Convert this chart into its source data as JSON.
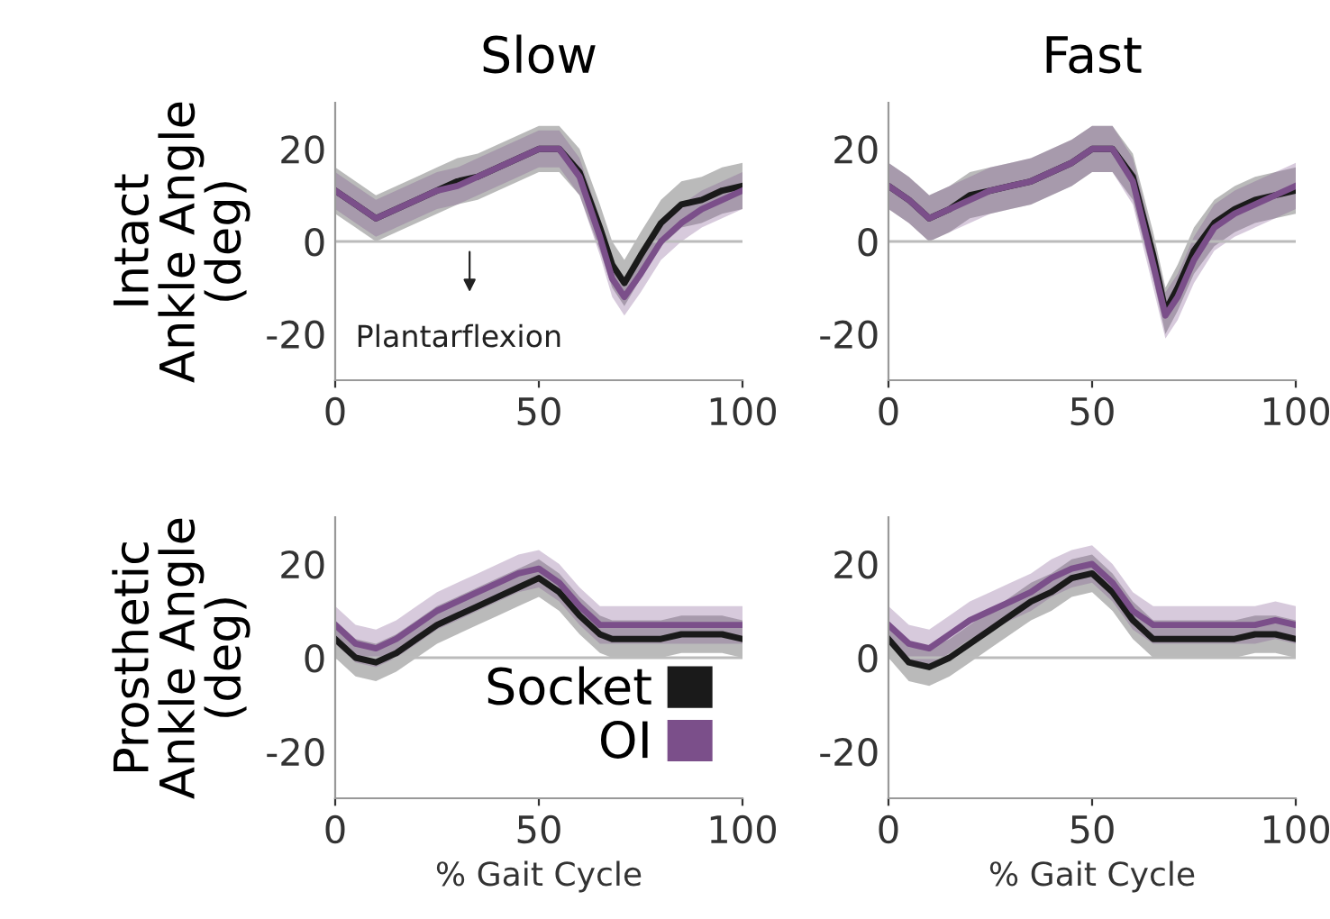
{
  "chart_data": [
    {
      "type": "line",
      "title": "Slow",
      "ylabel": "Intact\nAnkle Angle\n(deg)",
      "x": [
        0,
        5,
        10,
        15,
        20,
        25,
        30,
        35,
        40,
        45,
        50,
        55,
        60,
        65,
        68,
        71,
        75,
        80,
        85,
        90,
        95,
        100
      ],
      "xlim": [
        0,
        100
      ],
      "xticks": [
        0,
        50,
        100
      ],
      "ylim": [
        -30,
        30
      ],
      "yticks": [
        -20,
        0,
        20
      ],
      "ref_lines": [
        {
          "axis": "y",
          "value": 0
        }
      ],
      "legend": false,
      "annotations": [
        "Plantarflexion"
      ],
      "series": [
        {
          "color": "#1a1a1a",
          "values": [
            11,
            8,
            5,
            7,
            9,
            11,
            13,
            14,
            16,
            18,
            20,
            20,
            15,
            3,
            -5,
            -9,
            -3,
            4,
            8,
            9,
            11,
            12
          ],
          "lower": [
            6,
            3,
            0,
            2,
            4,
            6,
            8,
            9,
            11,
            13,
            15,
            15,
            10,
            -2,
            -10,
            -14,
            -8,
            -1,
            3,
            4,
            6,
            7
          ],
          "upper": [
            16,
            13,
            10,
            12,
            14,
            16,
            18,
            19,
            21,
            23,
            25,
            25,
            20,
            8,
            0,
            -4,
            2,
            9,
            13,
            14,
            16,
            17
          ]
        },
        {
          "color": "#7b4f8a",
          "values": [
            11,
            8,
            5,
            7,
            9,
            11,
            12,
            14,
            16,
            18,
            20,
            20,
            14,
            1,
            -8,
            -12,
            -7,
            0,
            4,
            7,
            9,
            11
          ],
          "lower": [
            7,
            4,
            1,
            3,
            5,
            7,
            8,
            10,
            12,
            14,
            16,
            16,
            10,
            -3,
            -12,
            -16,
            -11,
            -4,
            0,
            3,
            5,
            7
          ],
          "upper": [
            15,
            12,
            9,
            11,
            13,
            15,
            16,
            18,
            20,
            22,
            24,
            24,
            18,
            5,
            -4,
            -8,
            -3,
            4,
            8,
            11,
            13,
            15
          ]
        }
      ]
    },
    {
      "type": "line",
      "title": "Fast",
      "x": [
        0,
        5,
        10,
        15,
        20,
        25,
        30,
        35,
        40,
        45,
        50,
        55,
        60,
        65,
        68,
        71,
        75,
        80,
        85,
        90,
        95,
        100
      ],
      "xlim": [
        0,
        100
      ],
      "xticks": [
        0,
        50,
        100
      ],
      "ylim": [
        -30,
        30
      ],
      "yticks": [
        -20,
        0,
        20
      ],
      "ref_lines": [
        {
          "axis": "y",
          "value": 0
        }
      ],
      "legend": false,
      "series": [
        {
          "color": "#1a1a1a",
          "values": [
            12,
            9,
            5,
            7,
            10,
            11,
            12,
            13,
            15,
            17,
            20,
            20,
            14,
            -3,
            -15,
            -10,
            -2,
            4,
            7,
            9,
            10,
            11
          ],
          "lower": [
            7,
            4,
            0,
            2,
            5,
            6,
            7,
            8,
            10,
            12,
            15,
            15,
            9,
            -8,
            -20,
            -15,
            -7,
            -1,
            2,
            4,
            5,
            6
          ],
          "upper": [
            17,
            14,
            10,
            12,
            15,
            16,
            17,
            18,
            20,
            22,
            25,
            25,
            19,
            2,
            -10,
            -5,
            3,
            9,
            12,
            14,
            15,
            16
          ]
        },
        {
          "color": "#7b4f8a",
          "values": [
            12,
            9,
            5,
            7,
            9,
            11,
            12,
            13,
            15,
            17,
            20,
            20,
            13,
            -5,
            -16,
            -12,
            -4,
            3,
            6,
            8,
            10,
            12
          ],
          "lower": [
            7,
            4,
            0,
            2,
            4,
            6,
            7,
            8,
            10,
            12,
            15,
            15,
            8,
            -10,
            -21,
            -17,
            -9,
            -2,
            1,
            3,
            5,
            7
          ],
          "upper": [
            17,
            14,
            10,
            12,
            14,
            16,
            17,
            18,
            20,
            22,
            25,
            25,
            18,
            0,
            -11,
            -7,
            1,
            8,
            11,
            13,
            15,
            17
          ]
        }
      ]
    },
    {
      "type": "line",
      "ylabel": "Prosthetic\nAnkle Angle\n(deg)",
      "xlabel": "% Gait Cycle",
      "x": [
        0,
        5,
        10,
        15,
        20,
        25,
        30,
        35,
        40,
        45,
        50,
        55,
        60,
        65,
        68,
        71,
        75,
        80,
        85,
        90,
        95,
        100
      ],
      "xlim": [
        0,
        100
      ],
      "xticks": [
        0,
        50,
        100
      ],
      "ylim": [
        -30,
        30
      ],
      "yticks": [
        -20,
        0,
        20
      ],
      "ref_lines": [
        {
          "axis": "y",
          "value": 0
        }
      ],
      "legend": "bottom right",
      "series": [
        {
          "name": "Socket",
          "color": "#1a1a1a",
          "values": [
            4,
            0,
            -1,
            1,
            4,
            7,
            9,
            11,
            13,
            15,
            17,
            14,
            9,
            5,
            4,
            4,
            4,
            4,
            5,
            5,
            5,
            4
          ],
          "lower": [
            0,
            -4,
            -5,
            -3,
            0,
            3,
            5,
            7,
            9,
            11,
            13,
            10,
            5,
            1,
            0,
            0,
            0,
            0,
            1,
            1,
            1,
            0
          ],
          "upper": [
            8,
            4,
            3,
            5,
            8,
            11,
            13,
            15,
            17,
            19,
            21,
            18,
            13,
            9,
            8,
            8,
            8,
            8,
            9,
            9,
            9,
            8
          ]
        },
        {
          "name": "OI",
          "color": "#7b4f8a",
          "values": [
            7,
            3,
            2,
            4,
            7,
            10,
            12,
            14,
            16,
            18,
            19,
            16,
            11,
            7,
            7,
            7,
            7,
            7,
            7,
            7,
            7,
            7
          ],
          "lower": [
            3,
            -1,
            -2,
            0,
            3,
            6,
            8,
            10,
            12,
            14,
            15,
            12,
            7,
            3,
            3,
            3,
            3,
            3,
            3,
            3,
            3,
            3
          ],
          "upper": [
            11,
            7,
            6,
            8,
            11,
            14,
            16,
            18,
            20,
            22,
            23,
            20,
            15,
            11,
            11,
            11,
            11,
            11,
            11,
            11,
            11,
            11
          ]
        }
      ]
    },
    {
      "type": "line",
      "xlabel": "% Gait Cycle",
      "x": [
        0,
        5,
        10,
        15,
        20,
        25,
        30,
        35,
        40,
        45,
        50,
        55,
        60,
        65,
        68,
        71,
        75,
        80,
        85,
        90,
        95,
        100
      ],
      "xlim": [
        0,
        100
      ],
      "xticks": [
        0,
        50,
        100
      ],
      "ylim": [
        -30,
        30
      ],
      "yticks": [
        -20,
        0,
        20
      ],
      "ref_lines": [
        {
          "axis": "y",
          "value": 0
        }
      ],
      "legend": false,
      "series": [
        {
          "color": "#1a1a1a",
          "values": [
            4,
            -1,
            -2,
            0,
            3,
            6,
            9,
            12,
            14,
            17,
            18,
            14,
            8,
            4,
            4,
            4,
            4,
            4,
            4,
            5,
            5,
            4
          ],
          "lower": [
            0,
            -5,
            -6,
            -4,
            -1,
            2,
            5,
            8,
            10,
            13,
            14,
            10,
            4,
            0,
            0,
            0,
            0,
            0,
            0,
            1,
            1,
            0
          ],
          "upper": [
            8,
            3,
            2,
            4,
            7,
            10,
            13,
            16,
            18,
            21,
            22,
            18,
            12,
            8,
            8,
            8,
            8,
            8,
            8,
            9,
            9,
            8
          ]
        },
        {
          "color": "#7b4f8a",
          "values": [
            7,
            3,
            2,
            5,
            8,
            10,
            12,
            14,
            17,
            19,
            20,
            16,
            10,
            7,
            7,
            7,
            7,
            7,
            7,
            7,
            8,
            7
          ],
          "lower": [
            3,
            -1,
            -2,
            1,
            4,
            6,
            8,
            10,
            13,
            15,
            16,
            12,
            6,
            3,
            3,
            3,
            3,
            3,
            3,
            3,
            4,
            3
          ],
          "upper": [
            11,
            7,
            6,
            9,
            12,
            14,
            16,
            18,
            21,
            23,
            24,
            20,
            14,
            11,
            11,
            11,
            11,
            11,
            11,
            11,
            12,
            11
          ]
        }
      ]
    }
  ]
}
